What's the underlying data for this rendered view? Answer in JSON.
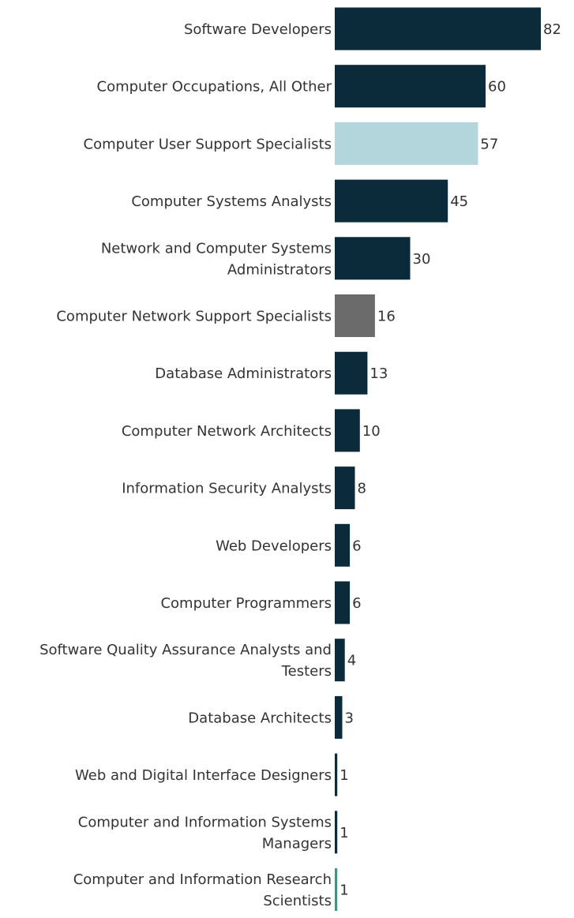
{
  "chart_data": {
    "type": "bar",
    "orientation": "horizontal",
    "categories": [
      "Software Developers",
      "Computer Occupations, All Other",
      "Computer User Support Specialists",
      "Computer Systems Analysts",
      "Network and Computer Systems Administrators",
      "Computer Network Support Specialists",
      "Database Administrators",
      "Computer Network Architects",
      "Information Security Analysts",
      "Web Developers",
      "Computer Programmers",
      "Software Quality Assurance Analysts and Testers",
      "Database Architects",
      "Web and Digital Interface Designers",
      "Computer and Information Systems Managers",
      "Computer and Information Research Scientists"
    ],
    "label_lines": [
      [
        "Software Developers"
      ],
      [
        "Computer Occupations, All Other"
      ],
      [
        "Computer User Support Specialists"
      ],
      [
        "Computer Systems Analysts"
      ],
      [
        "Network and Computer Systems",
        "Administrators"
      ],
      [
        "Computer Network Support Specialists"
      ],
      [
        "Database Administrators"
      ],
      [
        "Computer Network Architects"
      ],
      [
        "Information Security Analysts"
      ],
      [
        "Web Developers"
      ],
      [
        "Computer Programmers"
      ],
      [
        "Software Quality Assurance Analysts and",
        "Testers"
      ],
      [
        "Database Architects"
      ],
      [
        "Web and Digital Interface Designers"
      ],
      [
        "Computer and Information Systems",
        "Managers"
      ],
      [
        "Computer and Information Research",
        "Scientists"
      ]
    ],
    "values": [
      82,
      60,
      57,
      45,
      30,
      16,
      13,
      10,
      8,
      6,
      6,
      4,
      3,
      1,
      1,
      1
    ],
    "bar_colors": [
      "#0b2b3a",
      "#0b2b3a",
      "#b3d6dc",
      "#0b2b3a",
      "#0b2b3a",
      "#6b6b6b",
      "#0b2b3a",
      "#0b2b3a",
      "#0b2b3a",
      "#0b2b3a",
      "#0b2b3a",
      "#0b2b3a",
      "#0b2b3a",
      "#0b2b3a",
      "#0b2b3a",
      "#4a8f88"
    ],
    "xlim": [
      0,
      82
    ],
    "title": "",
    "xlabel": "",
    "ylabel": "",
    "grid": false,
    "legend": "none",
    "data_labels": true
  }
}
